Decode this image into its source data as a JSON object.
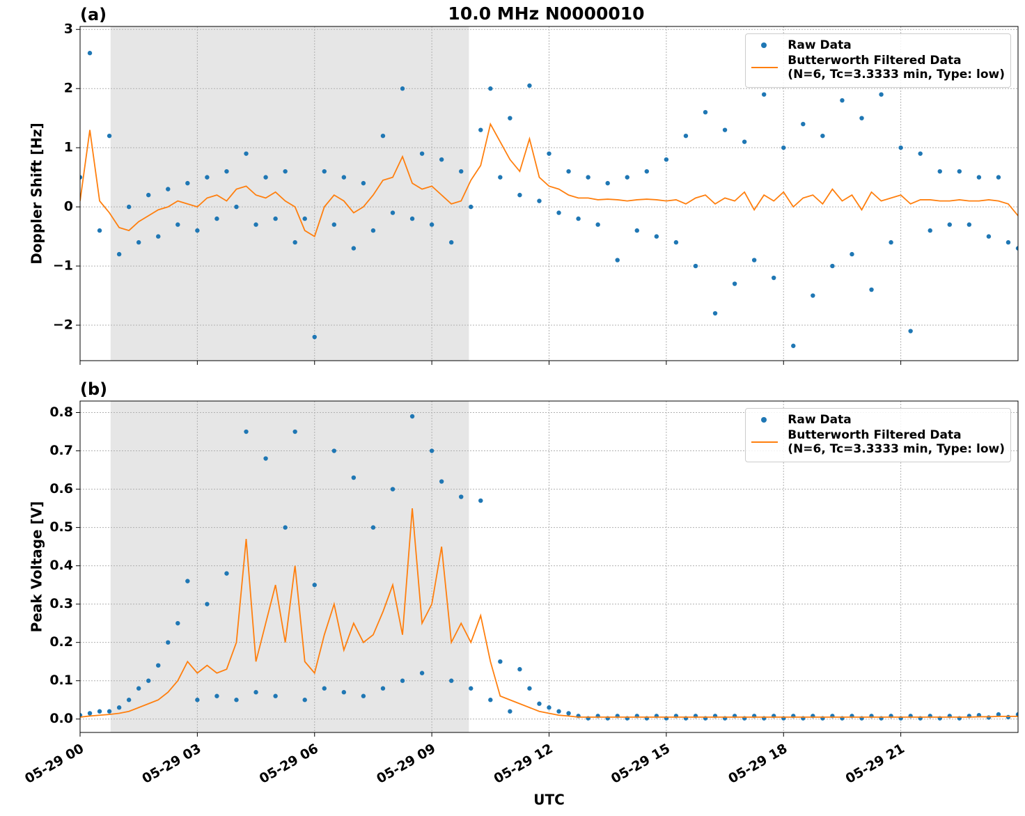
{
  "chart_data": [
    {
      "type": "line",
      "title": "10.0 MHz N0000010",
      "panel_label": "(a)",
      "y_label": "Doppler Shift [Hz]",
      "x": [
        0,
        0.25,
        0.5,
        0.75,
        1,
        1.25,
        1.5,
        1.75,
        2,
        2.25,
        2.5,
        2.75,
        3,
        3.25,
        3.5,
        3.75,
        4,
        4.25,
        4.5,
        4.75,
        5,
        5.25,
        5.5,
        5.75,
        6,
        6.25,
        6.5,
        6.75,
        7,
        7.25,
        7.5,
        7.75,
        8,
        8.25,
        8.5,
        8.75,
        9,
        9.25,
        9.5,
        9.75,
        10,
        10.25,
        10.5,
        10.75,
        11,
        11.25,
        11.5,
        11.75,
        12,
        12.25,
        12.5,
        12.75,
        13,
        13.25,
        13.5,
        13.75,
        14,
        14.25,
        14.5,
        14.75,
        15,
        15.25,
        15.5,
        15.75,
        16,
        16.25,
        16.5,
        16.75,
        17,
        17.25,
        17.5,
        17.75,
        18,
        18.25,
        18.5,
        18.75,
        19,
        19.25,
        19.5,
        19.75,
        20,
        20.25,
        20.5,
        20.75,
        21,
        21.25,
        21.5,
        21.75,
        22,
        22.25,
        22.5,
        22.75,
        23,
        23.25,
        23.5,
        23.75,
        24
      ],
      "series": [
        {
          "name": "Raw Data",
          "mode": "markers",
          "color": "#1f77b4",
          "values": [
            0.5,
            2.6,
            -0.4,
            1.2,
            -0.8,
            0.0,
            -0.6,
            0.2,
            -0.5,
            0.3,
            -0.3,
            0.4,
            -0.4,
            0.5,
            -0.2,
            0.6,
            0.0,
            0.9,
            -0.3,
            0.5,
            -0.2,
            0.6,
            -0.6,
            -0.2,
            -2.2,
            0.6,
            -0.3,
            0.5,
            -0.7,
            0.4,
            -0.4,
            1.2,
            -0.1,
            2.0,
            -0.2,
            0.9,
            -0.3,
            0.8,
            -0.6,
            0.6,
            0.0,
            1.3,
            2.0,
            0.5,
            1.5,
            0.2,
            2.05,
            0.1,
            0.9,
            -0.1,
            0.6,
            -0.2,
            0.5,
            -0.3,
            0.4,
            -0.9,
            0.5,
            -0.4,
            0.6,
            -0.5,
            0.8,
            -0.6,
            1.2,
            -1.0,
            1.6,
            -1.8,
            1.3,
            -1.3,
            1.1,
            -0.9,
            1.9,
            -1.2,
            1.0,
            -2.35,
            1.4,
            -1.5,
            1.2,
            -1.0,
            1.8,
            -0.8,
            1.5,
            -1.4,
            1.9,
            -0.6,
            1.0,
            -2.1,
            0.9,
            -0.4,
            0.6,
            -0.3,
            0.6,
            -0.3,
            0.5,
            -0.5,
            0.5,
            -0.6,
            -0.7
          ]
        },
        {
          "name": "Butterworth Filtered Data\n(N=6, Tc=3.3333 min, Type: low)",
          "mode": "line",
          "color": "#ff7f0e",
          "values": [
            0.1,
            1.3,
            0.1,
            -0.1,
            -0.35,
            -0.4,
            -0.25,
            -0.15,
            -0.05,
            0.0,
            0.1,
            0.05,
            0.0,
            0.15,
            0.2,
            0.1,
            0.3,
            0.35,
            0.2,
            0.15,
            0.25,
            0.1,
            0.0,
            -0.4,
            -0.5,
            0.0,
            0.2,
            0.1,
            -0.1,
            0.0,
            0.2,
            0.45,
            0.5,
            0.85,
            0.4,
            0.3,
            0.35,
            0.2,
            0.05,
            0.1,
            0.45,
            0.7,
            1.4,
            1.1,
            0.8,
            0.6,
            1.15,
            0.5,
            0.35,
            0.3,
            0.2,
            0.15,
            0.15,
            0.12,
            0.13,
            0.12,
            0.1,
            0.12,
            0.13,
            0.12,
            0.1,
            0.12,
            0.05,
            0.15,
            0.2,
            0.05,
            0.15,
            0.1,
            0.25,
            -0.05,
            0.2,
            0.1,
            0.25,
            0.0,
            0.15,
            0.2,
            0.05,
            0.3,
            0.1,
            0.2,
            -0.05,
            0.25,
            0.1,
            0.15,
            0.2,
            0.05,
            0.12,
            0.12,
            0.1,
            0.1,
            0.12,
            0.1,
            0.1,
            0.12,
            0.1,
            0.05,
            -0.15
          ]
        }
      ],
      "shade": [
        0.78,
        9.95
      ],
      "xlim": [
        0,
        24
      ],
      "xticks": [
        0,
        3,
        6,
        9,
        12,
        15,
        18,
        21
      ],
      "ylim": [
        -2.6,
        3.05
      ],
      "yticks": [
        {
          "value": -2,
          "label": "−2"
        },
        {
          "value": -1,
          "label": "−1"
        },
        0,
        1,
        2,
        3
      ],
      "grid": true,
      "legend": "upper right"
    },
    {
      "type": "line",
      "panel_label": "(b)",
      "y_label": "Peak Voltage [V]",
      "x_label": "UTC",
      "x": [
        0,
        0.25,
        0.5,
        0.75,
        1,
        1.25,
        1.5,
        1.75,
        2,
        2.25,
        2.5,
        2.75,
        3,
        3.25,
        3.5,
        3.75,
        4,
        4.25,
        4.5,
        4.75,
        5,
        5.25,
        5.5,
        5.75,
        6,
        6.25,
        6.5,
        6.75,
        7,
        7.25,
        7.5,
        7.75,
        8,
        8.25,
        8.5,
        8.75,
        9,
        9.25,
        9.5,
        9.75,
        10,
        10.25,
        10.5,
        10.75,
        11,
        11.25,
        11.5,
        11.75,
        12,
        12.25,
        12.5,
        12.75,
        13,
        13.25,
        13.5,
        13.75,
        14,
        14.25,
        14.5,
        14.75,
        15,
        15.25,
        15.5,
        15.75,
        16,
        16.25,
        16.5,
        16.75,
        17,
        17.25,
        17.5,
        17.75,
        18,
        18.25,
        18.5,
        18.75,
        19,
        19.25,
        19.5,
        19.75,
        20,
        20.25,
        20.5,
        20.75,
        21,
        21.25,
        21.5,
        21.75,
        22,
        22.25,
        22.5,
        22.75,
        23,
        23.25,
        23.5,
        23.75,
        24
      ],
      "series": [
        {
          "name": "Raw Data",
          "mode": "markers",
          "color": "#1f77b4",
          "values": [
            0.01,
            0.015,
            0.02,
            0.02,
            0.03,
            0.05,
            0.08,
            0.1,
            0.14,
            0.2,
            0.25,
            0.36,
            0.05,
            0.3,
            0.06,
            0.38,
            0.05,
            0.75,
            0.07,
            0.68,
            0.06,
            0.5,
            0.75,
            0.05,
            0.35,
            0.08,
            0.7,
            0.07,
            0.63,
            0.06,
            0.5,
            0.08,
            0.6,
            0.1,
            0.79,
            0.12,
            0.7,
            0.62,
            0.1,
            0.58,
            0.08,
            0.57,
            0.05,
            0.15,
            0.02,
            0.13,
            0.08,
            0.04,
            0.03,
            0.02,
            0.015,
            0.008,
            0.002,
            0.008,
            0.002,
            0.008,
            0.002,
            0.008,
            0.002,
            0.008,
            0.002,
            0.008,
            0.002,
            0.008,
            0.002,
            0.008,
            0.002,
            0.008,
            0.002,
            0.008,
            0.002,
            0.008,
            0.002,
            0.008,
            0.002,
            0.008,
            0.002,
            0.008,
            0.002,
            0.008,
            0.002,
            0.008,
            0.002,
            0.008,
            0.002,
            0.008,
            0.002,
            0.008,
            0.002,
            0.008,
            0.002,
            0.008,
            0.01,
            0.004,
            0.012,
            0.005,
            0.012
          ]
        },
        {
          "name": "Butterworth Filtered Data\n(N=6, Tc=3.3333 min, Type: low)",
          "mode": "line",
          "color": "#ff7f0e",
          "values": [
            0.005,
            0.008,
            0.01,
            0.012,
            0.015,
            0.02,
            0.03,
            0.04,
            0.05,
            0.07,
            0.1,
            0.15,
            0.12,
            0.14,
            0.12,
            0.13,
            0.2,
            0.47,
            0.15,
            0.25,
            0.35,
            0.2,
            0.4,
            0.15,
            0.12,
            0.22,
            0.3,
            0.18,
            0.25,
            0.2,
            0.22,
            0.28,
            0.35,
            0.22,
            0.55,
            0.25,
            0.3,
            0.45,
            0.2,
            0.25,
            0.2,
            0.27,
            0.15,
            0.06,
            0.05,
            0.04,
            0.03,
            0.02,
            0.015,
            0.01,
            0.008,
            0.005,
            0.005,
            0.005,
            0.005,
            0.005,
            0.005,
            0.005,
            0.005,
            0.005,
            0.005,
            0.005,
            0.005,
            0.005,
            0.005,
            0.005,
            0.005,
            0.005,
            0.005,
            0.005,
            0.005,
            0.005,
            0.005,
            0.005,
            0.005,
            0.005,
            0.005,
            0.005,
            0.005,
            0.005,
            0.005,
            0.005,
            0.005,
            0.005,
            0.005,
            0.005,
            0.005,
            0.005,
            0.005,
            0.005,
            0.005,
            0.005,
            0.006,
            0.006,
            0.007,
            0.007,
            0.007
          ]
        }
      ],
      "shade": [
        0.78,
        9.95
      ],
      "xlim": [
        0,
        24
      ],
      "xticks": [
        {
          "value": 0,
          "label": "05-29 00"
        },
        {
          "value": 3,
          "label": "05-29 03"
        },
        {
          "value": 6,
          "label": "05-29 06"
        },
        {
          "value": 9,
          "label": "05-29 09"
        },
        {
          "value": 12,
          "label": "05-29 12"
        },
        {
          "value": 15,
          "label": "05-29 15"
        },
        {
          "value": 18,
          "label": "05-29 18"
        },
        {
          "value": 21,
          "label": "05-29 21"
        }
      ],
      "ylim": [
        -0.035,
        0.83
      ],
      "yticks": [
        {
          "value": 0,
          "label": "0.0"
        },
        0.1,
        0.2,
        0.3,
        0.4,
        0.5,
        0.6,
        0.7,
        0.8
      ],
      "grid": true,
      "legend": "upper right"
    }
  ]
}
